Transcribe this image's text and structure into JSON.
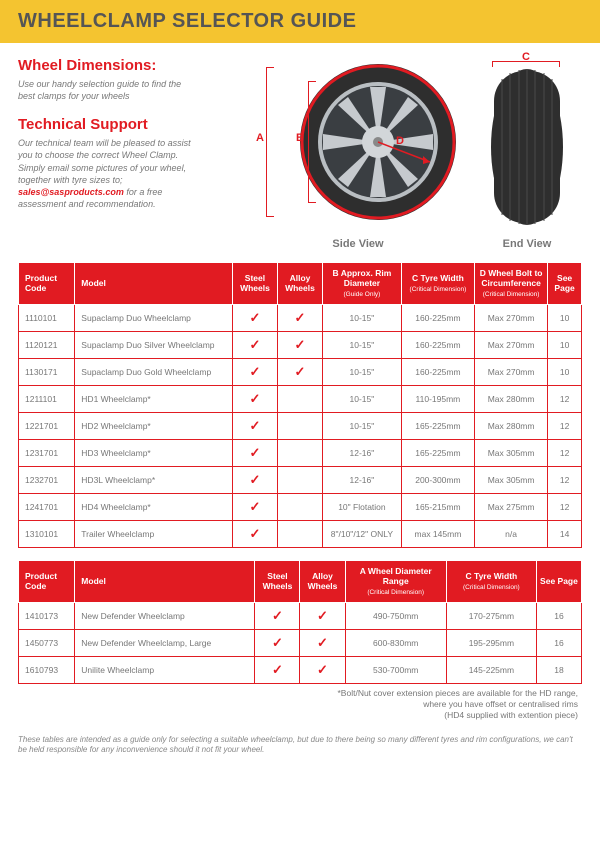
{
  "header": {
    "title": "WHEELCLAMP SELECTOR GUIDE"
  },
  "intro": {
    "dim_heading": "Wheel Dimensions:",
    "dim_text": "Use our handy selection guide to find the best clamps for your wheels",
    "support_heading": "Technical Support",
    "support_text_pre": "Our technical team will be pleased to assist you to choose the correct Wheel Clamp.  Simply email some pictures of your wheel, together with tyre sizes to; ",
    "support_email": "sales@sasproducts.com",
    "support_text_post": " for a free assessment and recommendation."
  },
  "diagram": {
    "side_caption": "Side View",
    "end_caption": "End View",
    "labels": {
      "A": "A",
      "B": "B",
      "C": "C",
      "D": "D"
    },
    "colors": {
      "accent": "#e11b22",
      "rim": "#8a8f94",
      "spoke": "#4b5055",
      "hub": "#c6cace",
      "tyre": "#2e2e2e",
      "tread": "#3a3a3a"
    }
  },
  "table1": {
    "columns": {
      "code": "Product Code",
      "model": "Model",
      "steel": "Steel Wheels",
      "alloy": "Alloy Wheels",
      "B": "B\nApprox. Rim Diameter",
      "B_sub": "(Guide Only)",
      "C": "C\nTyre Width",
      "C_sub": "(Critical Dimension)",
      "D": "D\nWheel Bolt to Circumference",
      "D_sub": "(Critical Dimension)",
      "page": "See Page"
    },
    "rows": [
      {
        "code": "1110101",
        "model": "Supaclamp Duo Wheelclamp",
        "steel": true,
        "alloy": true,
        "B": "10-15\"",
        "C": "160-225mm",
        "D": "Max 270mm",
        "page": "10"
      },
      {
        "code": "1120121",
        "model": "Supaclamp Duo Silver Wheelclamp",
        "steel": true,
        "alloy": true,
        "B": "10-15\"",
        "C": "160-225mm",
        "D": "Max 270mm",
        "page": "10"
      },
      {
        "code": "1130171",
        "model": "Supaclamp Duo Gold Wheelclamp",
        "steel": true,
        "alloy": true,
        "B": "10-15\"",
        "C": "160-225mm",
        "D": "Max 270mm",
        "page": "10"
      },
      {
        "code": "1211101",
        "model": "HD1 Wheelclamp*",
        "steel": true,
        "alloy": false,
        "B": "10-15\"",
        "C": "110-195mm",
        "D": "Max 280mm",
        "page": "12"
      },
      {
        "code": "1221701",
        "model": "HD2 Wheelclamp*",
        "steel": true,
        "alloy": false,
        "B": "10-15\"",
        "C": "165-225mm",
        "D": "Max 280mm",
        "page": "12"
      },
      {
        "code": "1231701",
        "model": "HD3 Wheelclamp*",
        "steel": true,
        "alloy": false,
        "B": "12-16\"",
        "C": "165-225mm",
        "D": "Max 305mm",
        "page": "12"
      },
      {
        "code": "1232701",
        "model": "HD3L Wheelclamp*",
        "steel": true,
        "alloy": false,
        "B": "12-16\"",
        "C": "200-300mm",
        "D": "Max 305mm",
        "page": "12"
      },
      {
        "code": "1241701",
        "model": "HD4 Wheelclamp*",
        "steel": true,
        "alloy": false,
        "B": "10\" Flotation",
        "C": "165-215mm",
        "D": "Max 275mm",
        "page": "12"
      },
      {
        "code": "1310101",
        "model": "Trailer Wheelclamp",
        "steel": true,
        "alloy": false,
        "B": "8\"/10\"/12\" ONLY",
        "C": "max 145mm",
        "D": "n/a",
        "page": "14"
      }
    ]
  },
  "table2": {
    "columns": {
      "code": "Product Code",
      "model": "Model",
      "steel": "Steel Wheels",
      "alloy": "Alloy Wheels",
      "A": "A\nWheel Diameter Range",
      "A_sub": "(Critical Dimension)",
      "C": "C\nTyre Width",
      "C_sub": "(Critical Dimension)",
      "page": "See Page"
    },
    "rows": [
      {
        "code": "1410173",
        "model": "New Defender Wheelclamp",
        "steel": true,
        "alloy": true,
        "A": "490-750mm",
        "C": "170-275mm",
        "page": "16"
      },
      {
        "code": "1450773",
        "model": "New Defender Wheelclamp, Large",
        "steel": true,
        "alloy": true,
        "A": "600-830mm",
        "C": "195-295mm",
        "page": "16"
      },
      {
        "code": "1610793",
        "model": "Unilite Wheelclamp",
        "steel": true,
        "alloy": true,
        "A": "530-700mm",
        "C": "145-225mm",
        "page": "18"
      }
    ]
  },
  "footnote": {
    "line1": "*Bolt/Nut cover extension pieces are available for the HD range,",
    "line2": "where you have offset or centralised rims",
    "line3": "(HD4 supplied with extention piece)"
  },
  "disclaimer": "These tables are intended as a guide only for selecting a suitable wheelclamp, but due to there being so many different tyres and rim configurations, we can't be held responsible for any inconvenience should it not fit your wheel."
}
